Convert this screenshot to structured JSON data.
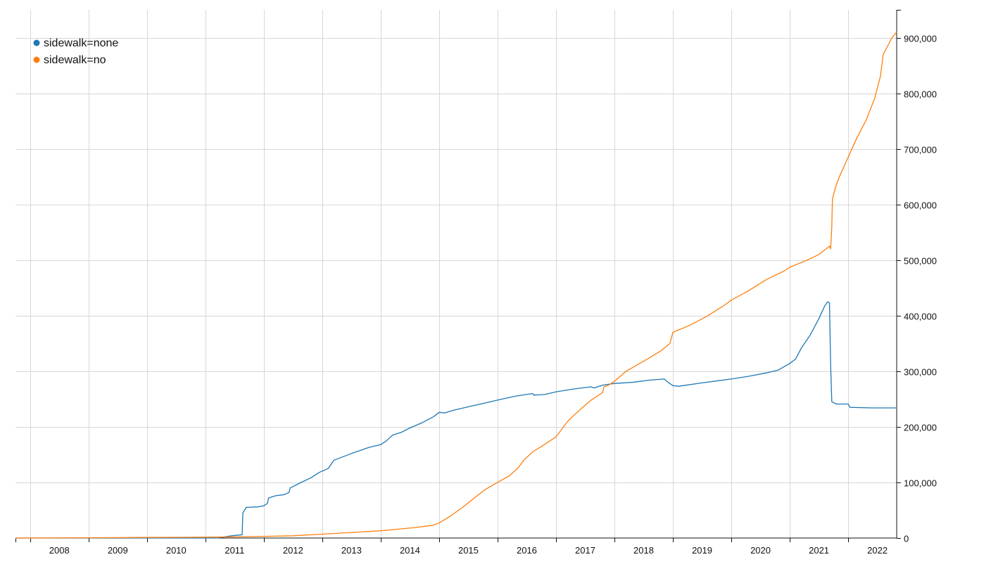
{
  "chart_data": {
    "type": "line",
    "title": "",
    "xlabel": "",
    "ylabel": "",
    "x_axis": {
      "min": 2007.75,
      "max": 2022.83,
      "ticks": [
        "2008",
        "2009",
        "2010",
        "2011",
        "2012",
        "2013",
        "2014",
        "2015",
        "2016",
        "2017",
        "2018",
        "2019",
        "2020",
        "2021",
        "2022"
      ]
    },
    "y_axis": {
      "min": 0,
      "max": 950000,
      "position": "right",
      "ticks": [
        {
          "value": 0,
          "label": "0"
        },
        {
          "value": 100000,
          "label": "100,000"
        },
        {
          "value": 200000,
          "label": "200,000"
        },
        {
          "value": 300000,
          "label": "300,000"
        },
        {
          "value": 400000,
          "label": "400,000"
        },
        {
          "value": 500000,
          "label": "500,000"
        },
        {
          "value": 600000,
          "label": "600,000"
        },
        {
          "value": 700000,
          "label": "700,000"
        },
        {
          "value": 800000,
          "label": "800,000"
        },
        {
          "value": 900000,
          "label": "900,000"
        }
      ]
    },
    "grid": true,
    "legend": "top-left",
    "series": [
      {
        "name": "sidewalk=none",
        "color": "#1f77b4",
        "points": [
          [
            2007.75,
            0
          ],
          [
            2011.2,
            0
          ],
          [
            2011.45,
            4000
          ],
          [
            2011.63,
            6000
          ],
          [
            2011.64,
            45000
          ],
          [
            2011.7,
            55000
          ],
          [
            2011.9,
            56000
          ],
          [
            2012.0,
            58000
          ],
          [
            2012.06,
            62000
          ],
          [
            2012.08,
            72000
          ],
          [
            2012.2,
            76000
          ],
          [
            2012.35,
            78000
          ],
          [
            2012.43,
            82000
          ],
          [
            2012.45,
            90000
          ],
          [
            2012.6,
            98000
          ],
          [
            2012.8,
            108000
          ],
          [
            2012.95,
            118000
          ],
          [
            2013.1,
            125000
          ],
          [
            2013.2,
            140000
          ],
          [
            2013.5,
            152000
          ],
          [
            2013.8,
            163000
          ],
          [
            2014.0,
            168000
          ],
          [
            2014.1,
            175000
          ],
          [
            2014.2,
            185000
          ],
          [
            2014.35,
            190000
          ],
          [
            2014.5,
            198000
          ],
          [
            2014.7,
            207000
          ],
          [
            2014.9,
            218000
          ],
          [
            2015.0,
            226000
          ],
          [
            2015.1,
            225000
          ],
          [
            2015.25,
            230000
          ],
          [
            2015.5,
            236000
          ],
          [
            2015.75,
            242000
          ],
          [
            2016.0,
            248000
          ],
          [
            2016.3,
            255000
          ],
          [
            2016.6,
            260000
          ],
          [
            2016.62,
            257000
          ],
          [
            2016.8,
            258000
          ],
          [
            2017.0,
            263000
          ],
          [
            2017.3,
            268000
          ],
          [
            2017.6,
            272000
          ],
          [
            2017.65,
            270000
          ],
          [
            2017.8,
            275000
          ],
          [
            2018.0,
            278000
          ],
          [
            2018.3,
            280000
          ],
          [
            2018.6,
            284000
          ],
          [
            2018.85,
            286000
          ],
          [
            2018.92,
            280000
          ],
          [
            2019.0,
            274000
          ],
          [
            2019.1,
            273000
          ],
          [
            2019.5,
            279000
          ],
          [
            2020.0,
            286000
          ],
          [
            2020.3,
            291000
          ],
          [
            2020.6,
            297000
          ],
          [
            2020.8,
            302000
          ],
          [
            2021.0,
            314000
          ],
          [
            2021.1,
            322000
          ],
          [
            2021.2,
            342000
          ],
          [
            2021.35,
            365000
          ],
          [
            2021.5,
            395000
          ],
          [
            2021.6,
            418000
          ],
          [
            2021.65,
            425000
          ],
          [
            2021.68,
            423000
          ],
          [
            2021.7,
            310000
          ],
          [
            2021.72,
            245000
          ],
          [
            2021.8,
            241000
          ],
          [
            2021.9,
            241000
          ],
          [
            2022.0,
            241000
          ],
          [
            2022.03,
            235000
          ],
          [
            2022.4,
            234000
          ],
          [
            2022.83,
            234000
          ]
        ]
      },
      {
        "name": "sidewalk=no",
        "color": "#ff7f0e",
        "points": [
          [
            2007.75,
            0
          ],
          [
            2009.0,
            500
          ],
          [
            2010.0,
            1000
          ],
          [
            2011.0,
            1500
          ],
          [
            2011.5,
            2000
          ],
          [
            2012.0,
            3000
          ],
          [
            2012.5,
            4000
          ],
          [
            2013.0,
            7000
          ],
          [
            2013.5,
            10000
          ],
          [
            2014.0,
            13000
          ],
          [
            2014.3,
            16000
          ],
          [
            2014.6,
            19000
          ],
          [
            2014.9,
            23000
          ],
          [
            2015.0,
            27000
          ],
          [
            2015.2,
            40000
          ],
          [
            2015.4,
            55000
          ],
          [
            2015.6,
            72000
          ],
          [
            2015.8,
            88000
          ],
          [
            2016.0,
            100000
          ],
          [
            2016.2,
            112000
          ],
          [
            2016.35,
            126000
          ],
          [
            2016.45,
            140000
          ],
          [
            2016.6,
            155000
          ],
          [
            2016.8,
            168000
          ],
          [
            2017.0,
            182000
          ],
          [
            2017.2,
            210000
          ],
          [
            2017.4,
            230000
          ],
          [
            2017.6,
            248000
          ],
          [
            2017.8,
            262000
          ],
          [
            2017.82,
            272000
          ],
          [
            2017.9,
            275000
          ],
          [
            2018.0,
            282000
          ],
          [
            2018.2,
            300000
          ],
          [
            2018.5,
            318000
          ],
          [
            2018.8,
            337000
          ],
          [
            2018.95,
            350000
          ],
          [
            2019.0,
            370000
          ],
          [
            2019.3,
            383000
          ],
          [
            2019.6,
            400000
          ],
          [
            2019.9,
            420000
          ],
          [
            2020.0,
            428000
          ],
          [
            2020.3,
            445000
          ],
          [
            2020.6,
            465000
          ],
          [
            2020.9,
            480000
          ],
          [
            2021.0,
            487000
          ],
          [
            2021.3,
            500000
          ],
          [
            2021.5,
            510000
          ],
          [
            2021.68,
            525000
          ],
          [
            2021.7,
            520000
          ],
          [
            2021.72,
            560000
          ],
          [
            2021.73,
            610000
          ],
          [
            2021.78,
            630000
          ],
          [
            2021.85,
            650000
          ],
          [
            2022.0,
            685000
          ],
          [
            2022.15,
            720000
          ],
          [
            2022.3,
            750000
          ],
          [
            2022.45,
            790000
          ],
          [
            2022.55,
            830000
          ],
          [
            2022.6,
            870000
          ],
          [
            2022.75,
            900000
          ],
          [
            2022.83,
            910000
          ]
        ]
      }
    ]
  }
}
